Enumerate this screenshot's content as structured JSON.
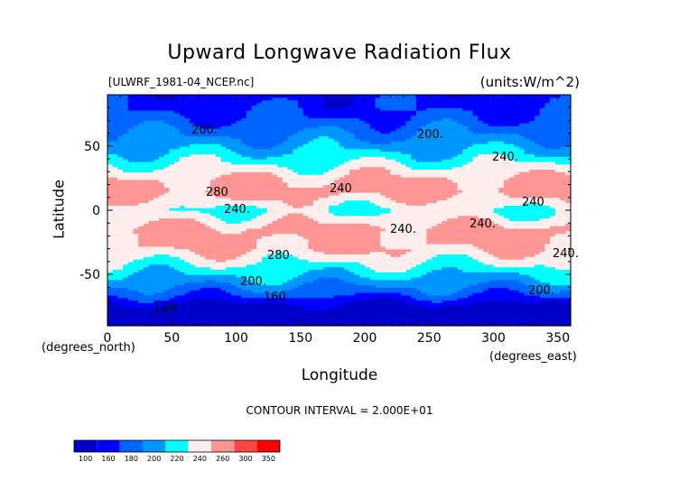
{
  "chart_data": {
    "type": "heatmap",
    "title": "Upward Longwave Radiation Flux",
    "subtitle_left": "[ULWRF_1981-04_NCEP.nc]",
    "subtitle_right": "(units:W/m^2)",
    "xlabel": "Longitude",
    "ylabel": "Latitude",
    "x_units": "(degrees_east)",
    "y_units": "(degrees_north)",
    "xlim": [
      0,
      360
    ],
    "ylim": [
      -90,
      90
    ],
    "x_ticks": [
      0,
      50,
      100,
      150,
      200,
      250,
      300,
      350
    ],
    "y_ticks": [
      -50,
      0,
      50
    ],
    "contour_note": "CONTOUR INTERVAL = 2.000E+01",
    "contour_labels": [
      "200.",
      "200.",
      "240.",
      "280",
      "240",
      "240.",
      "240.",
      "240.",
      "240",
      "280",
      "240.",
      "200.",
      "200.",
      "160",
      "120"
    ],
    "colorbar": {
      "levels": [
        "100",
        "160",
        "180",
        "200",
        "220",
        "240",
        "260",
        "300",
        "350"
      ],
      "colors": [
        "#0000c8",
        "#0000ff",
        "#0064ff",
        "#0096ff",
        "#00ffff",
        "#ffeeee",
        "#ff9696",
        "#ff4646",
        "#ff0000"
      ]
    },
    "zonal_profile": [
      {
        "lat": -90,
        "value": 120
      },
      {
        "lat": -75,
        "value": 150
      },
      {
        "lat": -65,
        "value": 185
      },
      {
        "lat": -55,
        "value": 210
      },
      {
        "lat": -45,
        "value": 232
      },
      {
        "lat": -30,
        "value": 262
      },
      {
        "lat": -15,
        "value": 268
      },
      {
        "lat": 0,
        "value": 238
      },
      {
        "lat": 15,
        "value": 270
      },
      {
        "lat": 25,
        "value": 262
      },
      {
        "lat": 35,
        "value": 242
      },
      {
        "lat": 45,
        "value": 222
      },
      {
        "lat": 55,
        "value": 205
      },
      {
        "lat": 65,
        "value": 192
      },
      {
        "lat": 75,
        "value": 178
      },
      {
        "lat": 90,
        "value": 170
      }
    ]
  }
}
